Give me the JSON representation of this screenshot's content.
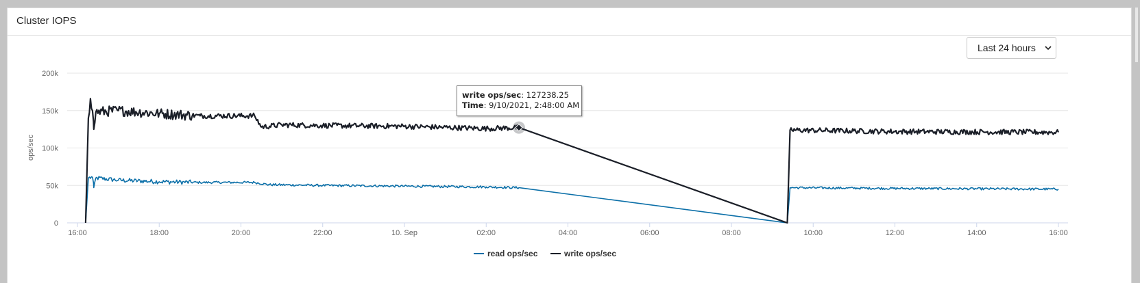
{
  "panel": {
    "title": "Cluster IOPS",
    "time_range": "Last 24 hours"
  },
  "tooltip": {
    "series_label": "write ops/sec",
    "value": "127238.25",
    "time_label": "Time",
    "time_value": "9/10/2021, 2:48:00 AM"
  },
  "chart_data": {
    "type": "line",
    "title": "",
    "xlabel": "",
    "ylabel": "ops/sec",
    "ylim": [
      0,
      200000
    ],
    "yticks": [
      0,
      50000,
      100000,
      150000,
      200000
    ],
    "ytick_labels": [
      "0",
      "50k",
      "100k",
      "150k",
      "200k"
    ],
    "xlim": [
      "2021-09-09 16:00",
      "2021-09-10 16:00"
    ],
    "xtick_labels": [
      "16:00",
      "18:00",
      "20:00",
      "22:00",
      "10. Sep",
      "02:00",
      "04:00",
      "06:00",
      "08:00",
      "10:00",
      "12:00",
      "14:00",
      "16:00"
    ],
    "grid": true,
    "legend": "bottom-center",
    "series": [
      {
        "name": "read ops/sec",
        "color": "#0b6fa8",
        "points": [
          [
            "2021-09-09 16:12",
            0
          ],
          [
            "2021-09-09 16:16",
            60000
          ],
          [
            "2021-09-09 16:22",
            61000
          ],
          [
            "2021-09-09 16:24",
            47000
          ],
          [
            "2021-09-09 16:27",
            60000
          ],
          [
            "2021-09-09 17:00",
            57000
          ],
          [
            "2021-09-09 18:00",
            55000
          ],
          [
            "2021-09-09 19:00",
            54000
          ],
          [
            "2021-09-09 20:20",
            54000
          ],
          [
            "2021-09-09 20:40",
            51000
          ],
          [
            "2021-09-09 22:00",
            50000
          ],
          [
            "2021-09-10 00:00",
            49000
          ],
          [
            "2021-09-10 02:00",
            48000
          ],
          [
            "2021-09-10 02:48",
            47000
          ],
          [
            "2021-09-10 09:22",
            0
          ],
          [
            "2021-09-10 09:26",
            47000
          ],
          [
            "2021-09-10 12:00",
            46000
          ],
          [
            "2021-09-10 16:00",
            45000
          ]
        ]
      },
      {
        "name": "write ops/sec",
        "color": "#1b1f28",
        "points": [
          [
            "2021-09-09 16:12",
            0
          ],
          [
            "2021-09-09 16:16",
            140000
          ],
          [
            "2021-09-09 16:19",
            166000
          ],
          [
            "2021-09-09 16:22",
            150000
          ],
          [
            "2021-09-09 16:24",
            125000
          ],
          [
            "2021-09-09 16:27",
            148000
          ],
          [
            "2021-09-09 17:00",
            150000
          ],
          [
            "2021-09-09 18:00",
            146000
          ],
          [
            "2021-09-09 19:00",
            143000
          ],
          [
            "2021-09-09 20:20",
            143000
          ],
          [
            "2021-09-09 20:30",
            128000
          ],
          [
            "2021-09-09 21:00",
            131000
          ],
          [
            "2021-09-09 22:00",
            130000
          ],
          [
            "2021-09-10 00:00",
            129000
          ],
          [
            "2021-09-10 02:00",
            126000
          ],
          [
            "2021-09-10 02:48",
            127238.25
          ],
          [
            "2021-09-10 09:22",
            0
          ],
          [
            "2021-09-10 09:26",
            124000
          ],
          [
            "2021-09-10 12:00",
            122000
          ],
          [
            "2021-09-10 16:00",
            121000
          ]
        ]
      }
    ]
  }
}
